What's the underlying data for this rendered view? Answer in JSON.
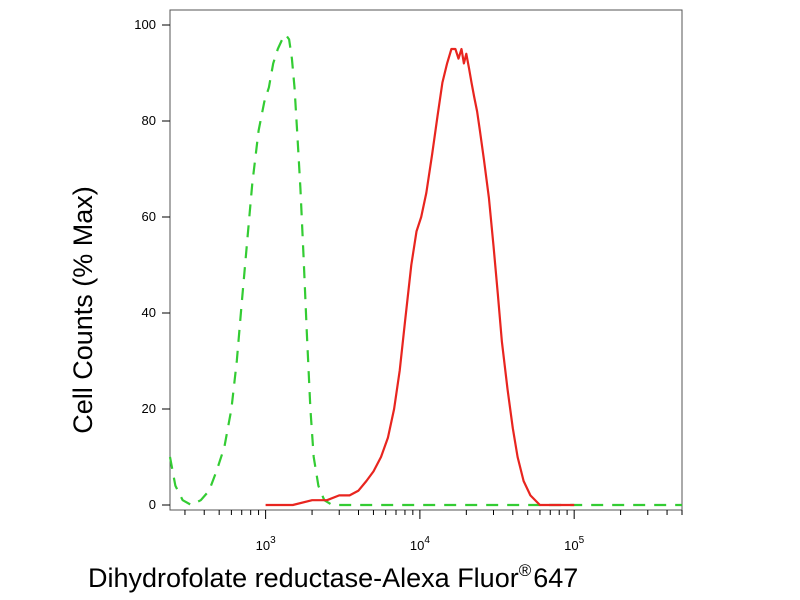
{
  "chart_data": {
    "type": "line",
    "xlabel": "Dihydrofolate reductase-Alexa Fluor",
    "xlabel_superscript": "®",
    "xlabel_suffix": "647",
    "ylabel": "Cell Counts (% Max)",
    "x_scale": "log",
    "xlim": [
      240,
      500000
    ],
    "ylim": [
      0,
      100
    ],
    "y_ticks": [
      0,
      20,
      40,
      60,
      80,
      100
    ],
    "x_ticks": [
      {
        "value": 1000,
        "base": "10",
        "exp": "3"
      },
      {
        "value": 10000,
        "base": "10",
        "exp": "4"
      },
      {
        "value": 100000,
        "base": "10",
        "exp": "5"
      }
    ],
    "grid": false,
    "series": [
      {
        "color": "#33cc33",
        "style": "dashed",
        "x": [
          240,
          260,
          290,
          330,
          380,
          430,
          480,
          540,
          600,
          650,
          700,
          760,
          820,
          900,
          980,
          1050,
          1120,
          1200,
          1280,
          1350,
          1420,
          1480,
          1540,
          1600,
          1680,
          1760,
          1850,
          1950,
          2050,
          2200,
          2400,
          2700,
          3000,
          5000,
          10000,
          50000,
          100000,
          500000
        ],
        "y": [
          10,
          4,
          1,
          0,
          1,
          3,
          7,
          12,
          20,
          30,
          42,
          55,
          67,
          78,
          84,
          87,
          92,
          95,
          97,
          98,
          97,
          93,
          87,
          78,
          66,
          52,
          36,
          20,
          10,
          4,
          1,
          0,
          0,
          0,
          0,
          0,
          0,
          0
        ]
      },
      {
        "color": "#e8251f",
        "style": "solid",
        "x": [
          1000,
          1500,
          2000,
          2500,
          3000,
          3500,
          4000,
          4500,
          5000,
          5600,
          6200,
          6800,
          7400,
          8000,
          8800,
          9500,
          10200,
          11000,
          12000,
          13000,
          14000,
          15000,
          16000,
          17000,
          17800,
          18600,
          19300,
          20000,
          20800,
          21600,
          22500,
          23500,
          24500,
          26000,
          28000,
          30000,
          32000,
          34000,
          37000,
          40000,
          43000,
          47000,
          52000,
          60000,
          70000,
          80000,
          100000
        ],
        "y": [
          0,
          0,
          1,
          1,
          2,
          2,
          3,
          5,
          7,
          10,
          14,
          20,
          28,
          38,
          50,
          57,
          60,
          65,
          73,
          81,
          88,
          92,
          95,
          95,
          93,
          95,
          92,
          94,
          91,
          88,
          85,
          82,
          78,
          72,
          64,
          54,
          44,
          34,
          24,
          16,
          10,
          5,
          2,
          0,
          0,
          0,
          0
        ]
      }
    ]
  }
}
